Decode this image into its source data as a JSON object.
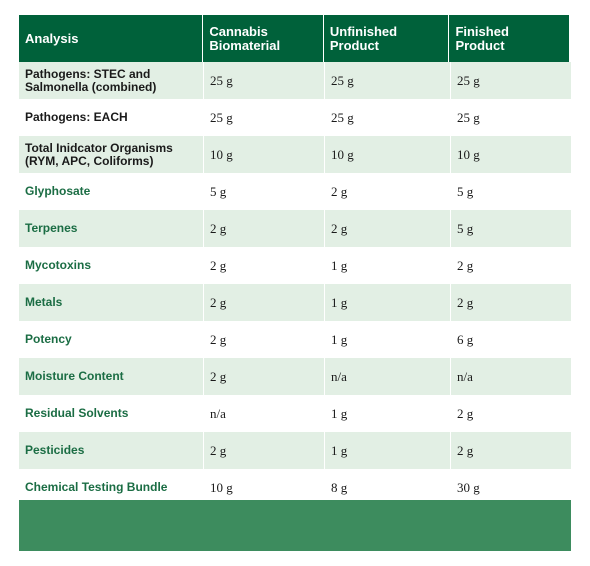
{
  "table": {
    "headers": [
      "Analysis",
      "Cannabis Biomaterial",
      "Unfinished Product",
      "Finished Product"
    ],
    "rows": [
      {
        "analysis": "Pathogens: STEC and Salmonella (combined)",
        "biomaterial": "25 g",
        "unfinished": "25 g",
        "finished": "25 g"
      },
      {
        "analysis": "Pathogens: EACH",
        "biomaterial": "25 g",
        "unfinished": "25 g",
        "finished": "25 g"
      },
      {
        "analysis": "Total Inidcator Organisms (RYM, APC, Coliforms)",
        "biomaterial": "10 g",
        "unfinished": "10 g",
        "finished": "10 g"
      },
      {
        "analysis": "Glyphosate",
        "biomaterial": "5 g",
        "unfinished": "2 g",
        "finished": "5 g"
      },
      {
        "analysis": "Terpenes",
        "biomaterial": "2 g",
        "unfinished": "2 g",
        "finished": "5 g"
      },
      {
        "analysis": "Mycotoxins",
        "biomaterial": "2 g",
        "unfinished": "1 g",
        "finished": "2 g"
      },
      {
        "analysis": "Metals",
        "biomaterial": "2 g",
        "unfinished": "1 g",
        "finished": "2 g"
      },
      {
        "analysis": "Potency",
        "biomaterial": "2 g",
        "unfinished": "1 g",
        "finished": "6 g"
      },
      {
        "analysis": "Moisture Content",
        "biomaterial": "2 g",
        "unfinished": "n/a",
        "finished": "n/a"
      },
      {
        "analysis": "Residual Solvents",
        "biomaterial": "n/a",
        "unfinished": "1 g",
        "finished": "2 g"
      },
      {
        "analysis": "Pesticides",
        "biomaterial": "2 g",
        "unfinished": "1 g",
        "finished": "2 g"
      },
      {
        "analysis": "Chemical Testing Bundle",
        "biomaterial": "10 g",
        "unfinished": "8 g",
        "finished": "30 g"
      }
    ]
  },
  "colors": {
    "header_bg": "#00613a",
    "row_shade": "#e2efe4",
    "label_green": "#1b6d44",
    "footer_band": "#3d8c5e"
  }
}
